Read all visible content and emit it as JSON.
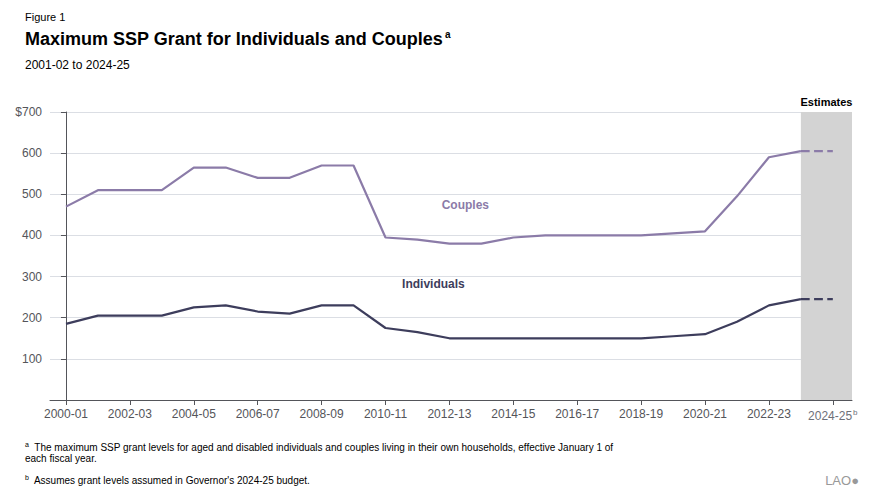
{
  "chart_data": {
    "type": "line",
    "figure_label": "Figure 1",
    "title": "Maximum SSP Grant for Individuals and Couples",
    "title_note": "a",
    "subtitle": "2001-02 to 2024-25",
    "xlim": [
      -0.5,
      24.6
    ],
    "xticks": [
      {
        "value": 0,
        "label": "2000-01"
      },
      {
        "value": 2,
        "label": "2002-03"
      },
      {
        "value": 4,
        "label": "2004-05"
      },
      {
        "value": 6,
        "label": "2006-07"
      },
      {
        "value": 8,
        "label": "2008-09"
      },
      {
        "value": 10,
        "label": "2010-11"
      },
      {
        "value": 12,
        "label": "2012-13"
      },
      {
        "value": 14,
        "label": "2014-15"
      },
      {
        "value": 16,
        "label": "2016-17"
      },
      {
        "value": 18,
        "label": "2018-19"
      },
      {
        "value": 20,
        "label": "2020-21"
      },
      {
        "value": 22,
        "label": "2022-23"
      },
      {
        "value": 24,
        "label": "2024-25",
        "note": "b"
      }
    ],
    "ylim": [
      0,
      700
    ],
    "yticks": [
      100,
      200,
      300,
      400,
      500,
      600,
      {
        "value": 700,
        "label": "$700"
      }
    ],
    "grid": true,
    "series": [
      {
        "color": "#3d3d5c",
        "line_style": "solid",
        "x": [
          0,
          1,
          2,
          3,
          4,
          5,
          6,
          7,
          8,
          9,
          10,
          11,
          12,
          13,
          14,
          15,
          16,
          17,
          18,
          19,
          20,
          21,
          22,
          23
        ],
        "values": [
          185,
          205,
          205,
          205,
          225,
          230,
          215,
          210,
          230,
          230,
          175,
          165,
          150,
          150,
          150,
          150,
          150,
          150,
          150,
          155,
          160,
          190,
          230,
          245
        ]
      },
      {
        "color": "#3d3d5c",
        "line_style": "dashed",
        "x": [
          23,
          24
        ],
        "values": [
          245,
          245
        ]
      },
      {
        "color": "#8b7ba8",
        "line_style": "solid",
        "x": [
          0,
          1,
          2,
          3,
          4,
          5,
          6,
          7,
          8,
          9,
          10,
          11,
          12,
          13,
          14,
          15,
          16,
          17,
          18,
          19,
          20,
          21,
          22,
          23
        ],
        "values": [
          470,
          510,
          510,
          510,
          565,
          565,
          540,
          540,
          570,
          570,
          395,
          390,
          380,
          380,
          395,
          400,
          400,
          400,
          400,
          405,
          410,
          495,
          590,
          605
        ]
      },
      {
        "color": "#8b7ba8",
        "line_style": "dashed",
        "x": [
          23,
          24
        ],
        "values": [
          605,
          605
        ]
      }
    ],
    "annotations": [
      {
        "text": "Individuals",
        "x": 11.5,
        "y": 255,
        "color": "#3d3d5c"
      },
      {
        "text": "Couples",
        "x": 12.5,
        "y": 448,
        "color": "#8b7ba8"
      }
    ],
    "shaded_region": {
      "label": "Estimates",
      "x": [
        23,
        24.6
      ]
    },
    "footnotes": [
      {
        "mark": "a",
        "text": "The maximum SSP grant levels for aged and disabled individuals and couples living in their own households, effective January 1 of each fiscal year."
      },
      {
        "mark": "b",
        "text": "Assumes grant levels assumed in Governor's 2024-25 budget."
      }
    ],
    "logo": "LAO●"
  }
}
